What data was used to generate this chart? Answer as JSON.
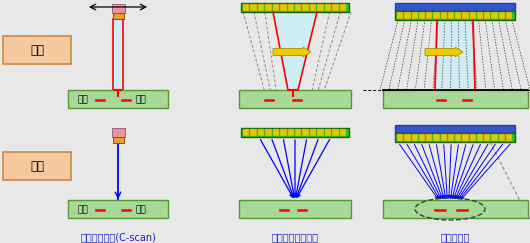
{
  "bg_color": "#e8e8e8",
  "label_送信": "送信",
  "label_受信": "受信",
  "label_欠陥": "欠陥",
  "label_col1": "単眼プローブ(C-scan)",
  "label_col2": "フェーズドアレイ",
  "label_col3": "開口合成法",
  "label_color": "#2222cc",
  "plate_color": "#a8d898",
  "plate_edge": "#559933",
  "send_box_color": "#f5c8a0",
  "send_box_edge": "#cc8844",
  "probe_pink": "#f090a0",
  "probe_orange": "#e8a030",
  "arr_green": "#22cc22",
  "arr_yellow": "#ddcc00",
  "arr_blue": "#3355cc",
  "beam_cyan": "#c8f0f8",
  "arrow_yellow": "#eecc00"
}
